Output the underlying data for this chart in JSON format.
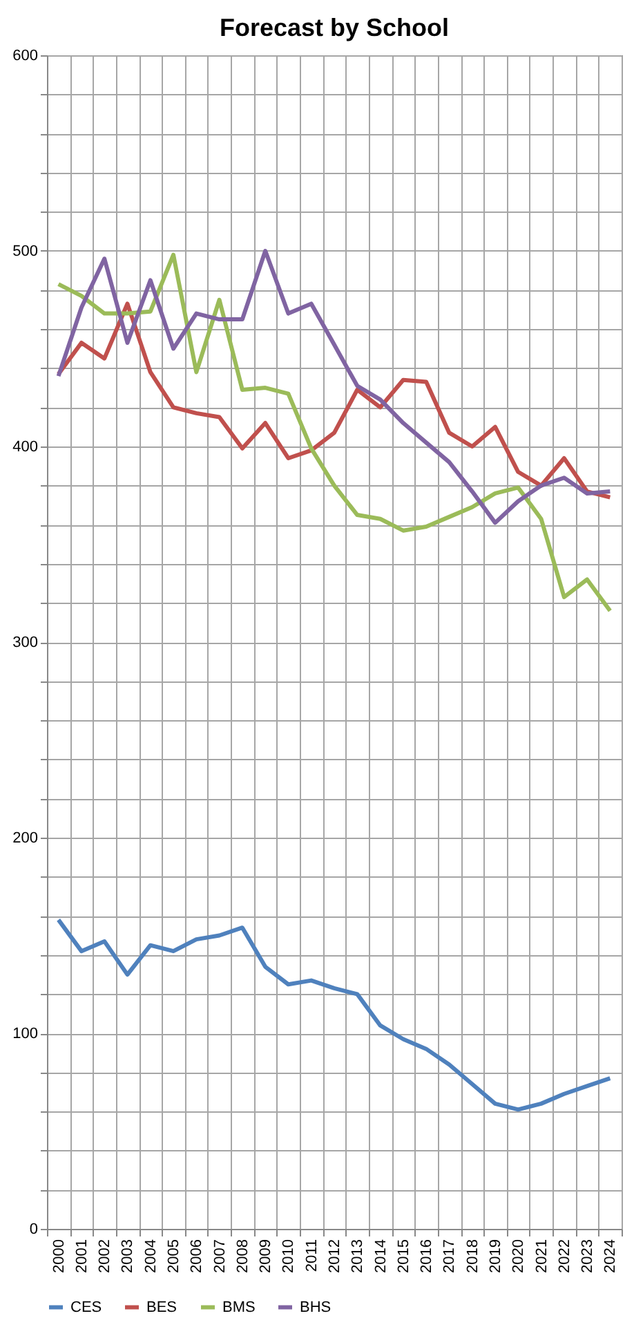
{
  "chart_data": {
    "type": "line",
    "title": "Forecast by School",
    "categories": [
      "2000",
      "2001",
      "2002",
      "2003",
      "2004",
      "2005",
      "2006",
      "2007",
      "2008",
      "2009",
      "2010",
      "2011",
      "2012",
      "2013",
      "2014",
      "2015",
      "2016",
      "2017",
      "2018",
      "2019",
      "2020",
      "2021",
      "2022",
      "2023",
      "2024"
    ],
    "series": [
      {
        "name": "CES",
        "color": "#4f81bd",
        "values": [
          158,
          142,
          147,
          130,
          145,
          142,
          148,
          150,
          154,
          134,
          125,
          127,
          123,
          120,
          104,
          97,
          92,
          84,
          74,
          64,
          61,
          64,
          69,
          73,
          77
        ]
      },
      {
        "name": "BES",
        "color": "#c0504d",
        "values": [
          437,
          453,
          445,
          473,
          438,
          420,
          417,
          415,
          399,
          412,
          394,
          398,
          407,
          429,
          420,
          434,
          433,
          407,
          400,
          410,
          387,
          380,
          394,
          377,
          374
        ]
      },
      {
        "name": "BMS",
        "color": "#9bbb59",
        "values": [
          483,
          477,
          468,
          468,
          469,
          498,
          438,
          475,
          429,
          430,
          427,
          399,
          380,
          365,
          363,
          357,
          359,
          364,
          369,
          376,
          379,
          363,
          323,
          332,
          316
        ]
      },
      {
        "name": "BHS",
        "color": "#8064a2",
        "values": [
          436,
          471,
          496,
          453,
          485,
          450,
          468,
          465,
          465,
          500,
          468,
          473,
          452,
          431,
          424,
          412,
          402,
          392,
          377,
          361,
          372,
          380,
          384,
          376,
          377
        ]
      }
    ],
    "ylim": [
      0,
      600
    ],
    "yticks": [
      0,
      {
        "value": 20,
        "label": null
      },
      {
        "value": 40,
        "label": null
      },
      {
        "value": 60,
        "label": null
      },
      {
        "value": 80,
        "label": null
      },
      100,
      {
        "value": 120,
        "label": null
      },
      {
        "value": 140,
        "label": null
      },
      {
        "value": 160,
        "label": null
      },
      {
        "value": 180,
        "label": null
      },
      200,
      {
        "value": 220,
        "label": null
      },
      {
        "value": 240,
        "label": null
      },
      {
        "value": 260,
        "label": null
      },
      {
        "value": 280,
        "label": null
      },
      300,
      {
        "value": 320,
        "label": null
      },
      {
        "value": 340,
        "label": null
      },
      {
        "value": 360,
        "label": null
      },
      {
        "value": 380,
        "label": null
      },
      400,
      {
        "value": 420,
        "label": null
      },
      {
        "value": 440,
        "label": null
      },
      {
        "value": 460,
        "label": null
      },
      {
        "value": 480,
        "label": null
      },
      500,
      {
        "value": 520,
        "label": null
      },
      {
        "value": 540,
        "label": null
      },
      {
        "value": 560,
        "label": null
      },
      {
        "value": 580,
        "label": null
      },
      600
    ],
    "grid": true,
    "legend": "bottom",
    "line_style": "solid",
    "marker": "none"
  }
}
